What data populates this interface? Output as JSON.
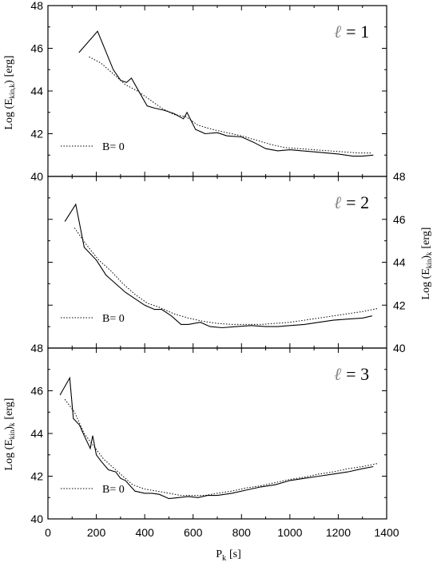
{
  "figure": {
    "xlabel": "P",
    "xlabel_sub": "k",
    "xlabel_unit": "[s]",
    "ylabel_a": "Log (E",
    "ylabel_sub_top": "kin",
    "ylabel_sub_bottom": "k",
    "ylabel_unit": "[erg]",
    "ylabel_left_top": "Log (Ekin,k) [erg]",
    "ylabel_right_middle": "Log (Ekin)k [erg]",
    "ylabel_left_bottom": "Log (Ekin)k [erg]"
  },
  "chart_data": [
    {
      "type": "line",
      "panel": "top",
      "annotation": "ℓ = 1",
      "annotation_symbol": "ℓ",
      "annotation_value": "= 1",
      "xlim": [
        0,
        1400
      ],
      "ylim": [
        40,
        48
      ],
      "xticks": [
        0,
        200,
        400,
        600,
        800,
        1000,
        1200,
        1400
      ],
      "yticks": [
        40,
        42,
        44,
        46,
        48
      ],
      "y_axis_side": "left",
      "legend": {
        "label": "B= 0",
        "placement": "lower-left"
      },
      "series": [
        {
          "style": "solid",
          "x": [
            128,
            205,
            270,
            300,
            325,
            345,
            380,
            410,
            440,
            480,
            520,
            560,
            575,
            610,
            650,
            700,
            740,
            800,
            850,
            900,
            950,
            1000,
            1050,
            1100,
            1150,
            1200,
            1260,
            1300,
            1345
          ],
          "y": [
            45.8,
            46.8,
            45.0,
            44.5,
            44.4,
            44.6,
            43.9,
            43.3,
            43.2,
            43.1,
            42.95,
            42.7,
            43.0,
            42.2,
            42.0,
            42.05,
            41.9,
            41.85,
            41.6,
            41.3,
            41.2,
            41.25,
            41.2,
            41.15,
            41.1,
            41.05,
            40.95,
            40.95,
            41.0
          ]
        },
        {
          "name": "B= 0",
          "style": "dotted",
          "x": [
            170,
            220,
            270,
            320,
            370,
            420,
            470,
            520,
            570,
            620,
            680,
            740,
            800,
            860,
            920,
            980,
            1040,
            1100,
            1160,
            1220,
            1280,
            1340
          ],
          "y": [
            45.6,
            45.3,
            44.8,
            44.3,
            44.0,
            43.6,
            43.2,
            42.9,
            42.8,
            42.4,
            42.2,
            42.05,
            41.9,
            41.7,
            41.5,
            41.35,
            41.3,
            41.25,
            41.2,
            41.15,
            41.1,
            41.1
          ]
        }
      ]
    },
    {
      "type": "line",
      "panel": "middle",
      "annotation": "ℓ = 2",
      "annotation_symbol": "ℓ",
      "annotation_value": "= 2",
      "xlim": [
        0,
        1400
      ],
      "ylim": [
        40,
        48
      ],
      "xticks": [
        0,
        200,
        400,
        600,
        800,
        1000,
        1200,
        1400
      ],
      "yticks": [
        40,
        42,
        44,
        46,
        48
      ],
      "y_axis_side": "right",
      "legend": {
        "label": "B= 0",
        "placement": "lower-left"
      },
      "series": [
        {
          "style": "solid",
          "x": [
            70,
            115,
            150,
            200,
            240,
            280,
            320,
            360,
            400,
            440,
            470,
            510,
            550,
            580,
            630,
            670,
            720,
            780,
            840,
            900,
            950,
            1000,
            1060,
            1120,
            1180,
            1240,
            1300,
            1340
          ],
          "y": [
            45.9,
            46.7,
            44.7,
            44.1,
            43.4,
            43.0,
            42.6,
            42.3,
            42.0,
            41.8,
            41.8,
            41.5,
            41.1,
            41.1,
            41.2,
            41.0,
            40.95,
            41.0,
            41.05,
            41.0,
            41.0,
            41.05,
            41.1,
            41.2,
            41.3,
            41.35,
            41.4,
            41.5
          ]
        },
        {
          "name": "B= 0",
          "style": "dotted",
          "x": [
            110,
            160,
            210,
            260,
            310,
            360,
            410,
            460,
            520,
            580,
            640,
            700,
            760,
            820,
            880,
            940,
            1000,
            1060,
            1120,
            1180,
            1240,
            1300,
            1365
          ],
          "y": [
            45.6,
            44.8,
            44.1,
            43.6,
            43.0,
            42.5,
            42.1,
            41.9,
            41.6,
            41.4,
            41.25,
            41.15,
            41.1,
            41.1,
            41.1,
            41.15,
            41.2,
            41.3,
            41.4,
            41.5,
            41.6,
            41.7,
            41.85
          ]
        }
      ]
    },
    {
      "type": "line",
      "panel": "bottom",
      "annotation": "ℓ = 3",
      "annotation_symbol": "ℓ",
      "annotation_value": "= 3",
      "xlim": [
        0,
        1400
      ],
      "ylim": [
        40,
        48
      ],
      "xticks": [
        0,
        200,
        400,
        600,
        800,
        1000,
        1200,
        1400
      ],
      "yticks": [
        40,
        42,
        44,
        46,
        48
      ],
      "y_axis_side": "left",
      "legend": {
        "label": "B= 0",
        "placement": "lower-left"
      },
      "series": [
        {
          "style": "solid",
          "x": [
            50,
            90,
            105,
            130,
            150,
            175,
            185,
            200,
            220,
            250,
            280,
            300,
            320,
            360,
            400,
            430,
            460,
            500,
            540,
            580,
            620,
            660,
            700,
            760,
            820,
            880,
            940,
            1000,
            1060,
            1120,
            1180,
            1240,
            1300,
            1345
          ],
          "y": [
            45.8,
            46.6,
            44.7,
            44.4,
            43.9,
            43.3,
            43.9,
            43.0,
            42.7,
            42.3,
            42.2,
            41.9,
            41.8,
            41.3,
            41.2,
            41.2,
            41.15,
            40.95,
            41.0,
            41.05,
            41.0,
            41.1,
            41.1,
            41.2,
            41.35,
            41.5,
            41.6,
            41.8,
            41.9,
            42.0,
            42.1,
            42.2,
            42.35,
            42.45
          ]
        },
        {
          "name": "B= 0",
          "style": "dotted",
          "x": [
            70,
            110,
            150,
            190,
            230,
            270,
            310,
            350,
            400,
            450,
            500,
            550,
            600,
            650,
            700,
            760,
            820,
            880,
            940,
            1000,
            1060,
            1120,
            1180,
            1240,
            1300,
            1365
          ],
          "y": [
            45.6,
            45.0,
            44.0,
            43.4,
            42.8,
            42.4,
            42.0,
            41.6,
            41.4,
            41.3,
            41.2,
            41.1,
            41.1,
            41.1,
            41.2,
            41.3,
            41.45,
            41.55,
            41.7,
            41.85,
            41.95,
            42.1,
            42.2,
            42.35,
            42.45,
            42.6
          ]
        }
      ]
    }
  ]
}
